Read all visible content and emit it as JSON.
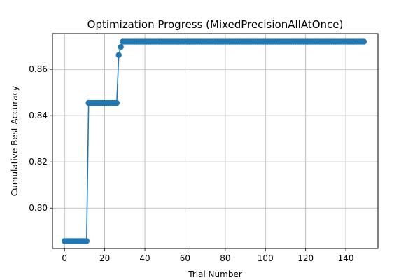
{
  "chart_data": {
    "type": "line",
    "title": "Optimization Progress (MixedPrecisionAllAtOnce)",
    "xlabel": "Trial Number",
    "ylabel": "Cumulative Best Accuracy",
    "xlim": [
      -6,
      156
    ],
    "ylim": [
      0.7825,
      0.8755
    ],
    "xticks": [
      0,
      20,
      40,
      60,
      80,
      100,
      120,
      140
    ],
    "yticks": [
      0.8,
      0.82,
      0.84,
      0.86
    ],
    "xtick_labels": [
      "0",
      "20",
      "40",
      "60",
      "80",
      "100",
      "120",
      "140"
    ],
    "ytick_labels": [
      "0.80",
      "0.82",
      "0.84",
      "0.86"
    ],
    "grid": true,
    "marker": "circle",
    "series_color": "#1f77b4",
    "segments": [
      {
        "from": 0,
        "to": 11,
        "value": 0.7857
      },
      {
        "from": 12,
        "to": 26,
        "value": 0.8455
      },
      {
        "from": 27,
        "to": 27,
        "value": 0.8662
      },
      {
        "from": 28,
        "to": 28,
        "value": 0.8697
      },
      {
        "from": 29,
        "to": 149,
        "value": 0.872
      }
    ]
  }
}
